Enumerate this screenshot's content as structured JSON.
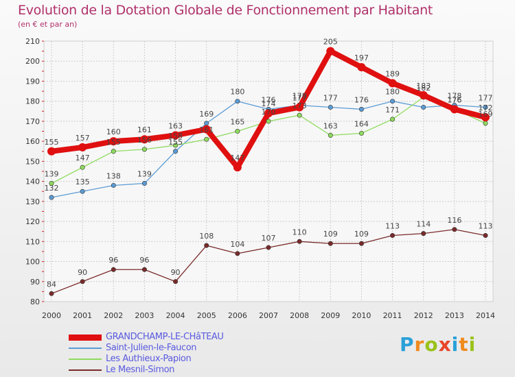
{
  "header": {
    "title": "Evolution de la Dotation Globale de Fonctionnement par Habitant",
    "subtitle": "(en € et par an)"
  },
  "logo": {
    "text": "Proxiti"
  },
  "chart_data": {
    "type": "line",
    "x": [
      2000,
      2001,
      2002,
      2003,
      2004,
      2005,
      2006,
      2007,
      2008,
      2009,
      2010,
      2011,
      2012,
      2013,
      2014
    ],
    "ylim": [
      80,
      210
    ],
    "yticks": [
      80,
      90,
      100,
      110,
      120,
      130,
      140,
      150,
      160,
      170,
      180,
      190,
      200,
      210
    ],
    "grid": true,
    "legend_position": "bottom-left",
    "series": [
      {
        "name": "GRANDCHAMP-LE-CHâTEAU",
        "color": "#e01010",
        "values": [
          155,
          157,
          160,
          161,
          163,
          166,
          147,
          174,
          177,
          205,
          197,
          189,
          183,
          176,
          172
        ],
        "labels": [
          "155",
          "157",
          "160",
          "161",
          "163",
          "",
          "147",
          "174",
          "177",
          "205",
          "197",
          "189",
          "183",
          "176",
          "172"
        ]
      },
      {
        "name": "Saint-Julien-le-Faucon",
        "color": "#5b9bd5",
        "values": [
          132,
          135,
          138,
          139,
          155,
          169,
          180,
          176,
          178,
          177,
          176,
          180,
          177,
          178,
          177
        ],
        "labels": [
          "132",
          "135",
          "138",
          "139",
          "155",
          "169",
          "180",
          "176",
          "178",
          "177",
          "176",
          "180",
          "",
          "178",
          "177"
        ]
      },
      {
        "name": "Les Authieux-Papion",
        "color": "#8fdb5e",
        "values": [
          139,
          147,
          155,
          156,
          158,
          161,
          165,
          170,
          173,
          163,
          164,
          171,
          182,
          176,
          169
        ],
        "labels": [
          "139",
          "147",
          "155",
          "156",
          "158",
          "161",
          "165",
          "170",
          "173",
          "163",
          "164",
          "171",
          "182",
          "176",
          "169"
        ]
      },
      {
        "name": "Le Mesnil-Simon",
        "color": "#7a2a2a",
        "values": [
          84,
          90,
          96,
          96,
          90,
          108,
          104,
          107,
          110,
          109,
          109,
          113,
          114,
          116,
          113
        ],
        "labels": [
          "84",
          "90",
          "96",
          "96",
          "90",
          "108",
          "104",
          "107",
          "110",
          "109",
          "109",
          "113",
          "114",
          "116",
          "113"
        ]
      }
    ]
  }
}
